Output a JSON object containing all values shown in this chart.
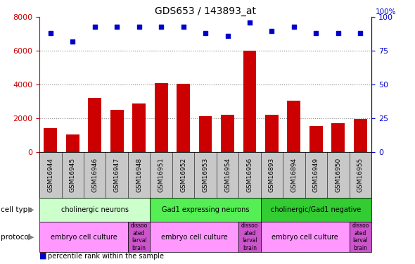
{
  "title": "GDS653 / 143893_at",
  "samples": [
    "GSM16944",
    "GSM16945",
    "GSM16946",
    "GSM16947",
    "GSM16948",
    "GSM16951",
    "GSM16952",
    "GSM16953",
    "GSM16954",
    "GSM16956",
    "GSM16893",
    "GSM16894",
    "GSM16949",
    "GSM16950",
    "GSM16955"
  ],
  "counts": [
    1400,
    1050,
    3200,
    2500,
    2850,
    4100,
    4050,
    2100,
    2200,
    6000,
    2200,
    3050,
    1550,
    1700,
    1950
  ],
  "percentile": [
    88,
    82,
    93,
    93,
    93,
    93,
    93,
    88,
    86,
    96,
    90,
    93,
    88,
    88,
    88
  ],
  "ylim_left": [
    0,
    8000
  ],
  "ylim_right": [
    0,
    100
  ],
  "yticks_left": [
    0,
    2000,
    4000,
    6000,
    8000
  ],
  "yticks_right": [
    0,
    25,
    50,
    75,
    100
  ],
  "bar_color": "#cc0000",
  "dot_color": "#0000cc",
  "cell_type_groups": [
    {
      "label": "cholinergic neurons",
      "start": 0,
      "end": 5,
      "color": "#ccffcc"
    },
    {
      "label": "Gad1 expressing neurons",
      "start": 5,
      "end": 10,
      "color": "#55ee55"
    },
    {
      "label": "cholinergic/Gad1 negative",
      "start": 10,
      "end": 15,
      "color": "#33cc33"
    }
  ],
  "protocol_groups": [
    {
      "label": "embryo cell culture",
      "start": 0,
      "end": 4,
      "color": "#ff99ff"
    },
    {
      "label": "dissoo\nated\nlarval\nbrain",
      "start": 4,
      "end": 5,
      "color": "#cc66cc"
    },
    {
      "label": "embryo cell culture",
      "start": 5,
      "end": 9,
      "color": "#ff99ff"
    },
    {
      "label": "dissoo\nated\nlarval\nbrain",
      "start": 9,
      "end": 10,
      "color": "#cc66cc"
    },
    {
      "label": "embryo cell culture",
      "start": 10,
      "end": 14,
      "color": "#ff99ff"
    },
    {
      "label": "dissoo\nated\nlarval\nbrain",
      "start": 14,
      "end": 15,
      "color": "#cc66cc"
    }
  ],
  "grid_color": "#888888",
  "bar_color_left": "#cc0000",
  "dot_color_right": "#0000cc",
  "tick_bg_color": "#c8c8c8"
}
